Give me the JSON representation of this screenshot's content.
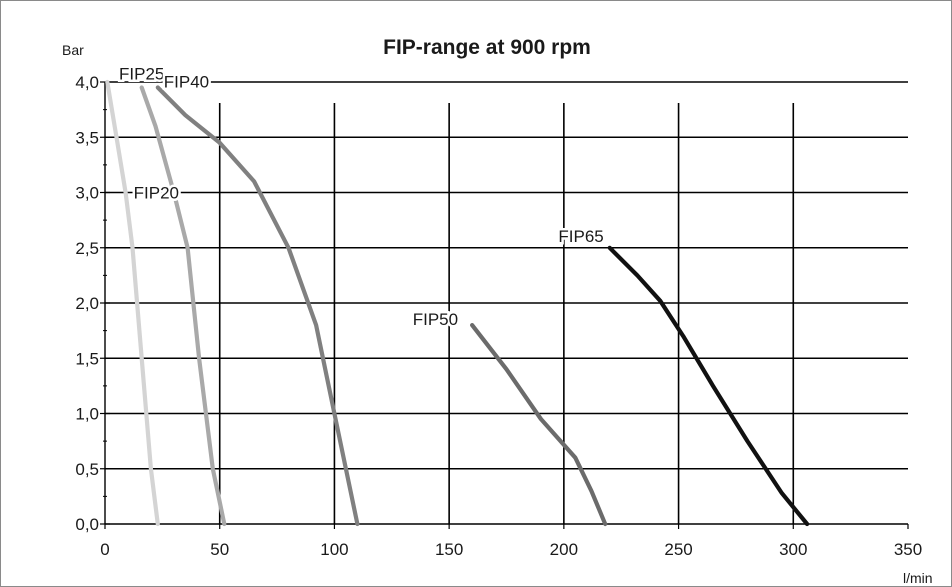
{
  "chart_data": {
    "type": "line",
    "title": "FIP-range at 900 rpm",
    "ylabel": "Bar",
    "xlabel": "l/min",
    "xlim": [
      0,
      350
    ],
    "ylim": [
      0,
      4.0
    ],
    "x_ticks": [
      0,
      50,
      100,
      150,
      200,
      250,
      300,
      350
    ],
    "x_tick_labels": [
      "0",
      "50",
      "100",
      "150",
      "200",
      "250",
      "300",
      "350"
    ],
    "y_ticks": [
      0,
      0.5,
      1.0,
      1.5,
      2.0,
      2.5,
      3.0,
      3.5,
      4.0
    ],
    "y_tick_labels": [
      "0,0",
      "0,5",
      "1,0",
      "1,5",
      "2,0",
      "2,5",
      "3,0",
      "3,5",
      "4,0"
    ],
    "grid": true,
    "series": [
      {
        "name": "FIP20",
        "color": "#d4d4d4",
        "x": [
          1,
          5,
          9,
          12,
          16,
          20,
          23
        ],
        "y": [
          4.0,
          3.5,
          3.0,
          2.5,
          1.5,
          0.5,
          0.0
        ]
      },
      {
        "name": "FIP25",
        "color": "#a9a9a9",
        "x": [
          16,
          22,
          30,
          36,
          41,
          47,
          52
        ],
        "y": [
          3.95,
          3.6,
          3.0,
          2.5,
          1.5,
          0.5,
          0.0
        ]
      },
      {
        "name": "FIP40",
        "color": "#808080",
        "x": [
          23,
          35,
          50,
          65,
          80,
          92,
          100,
          105,
          110
        ],
        "y": [
          3.95,
          3.7,
          3.45,
          3.1,
          2.5,
          1.8,
          1.0,
          0.5,
          0.0
        ]
      },
      {
        "name": "FIP50",
        "color": "#6b6b6b",
        "x": [
          160,
          175,
          190,
          205,
          212,
          218
        ],
        "y": [
          1.8,
          1.4,
          0.95,
          0.6,
          0.3,
          0.0
        ]
      },
      {
        "name": "FIP65",
        "color": "#111111",
        "x": [
          220,
          232,
          242,
          252,
          265,
          280,
          295,
          306
        ],
        "y": [
          2.5,
          2.25,
          2.02,
          1.7,
          1.25,
          0.75,
          0.28,
          0.0
        ]
      }
    ]
  }
}
